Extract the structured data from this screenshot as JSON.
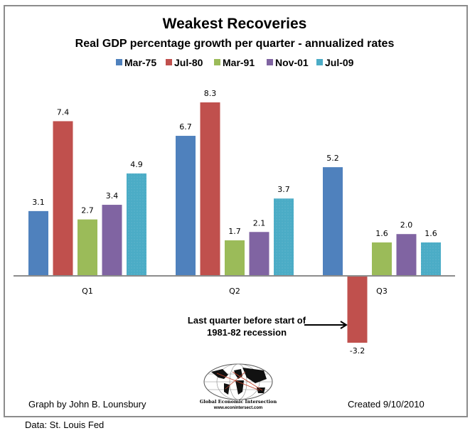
{
  "chart_data": {
    "type": "bar",
    "title": "Weakest Recoveries",
    "subtitle": "Real GDP percentage growth per quarter - annualized rates",
    "xlabel": "",
    "ylabel": "",
    "ylim": [
      -3.2,
      8.3
    ],
    "grid": false,
    "legend_position": "top",
    "categories": [
      "Q1",
      "Q2",
      "Q3"
    ],
    "series": [
      {
        "name": "Mar-75",
        "color": "#4F81BD",
        "values": [
          3.1,
          6.7,
          5.2
        ],
        "labels": [
          "3.1",
          "6.7",
          "5.2"
        ]
      },
      {
        "name": "Jul-80",
        "color": "#C0504D",
        "values": [
          7.4,
          8.3,
          -3.2
        ],
        "labels": [
          "7.4",
          "8.3",
          "-3.2"
        ]
      },
      {
        "name": "Mar-91",
        "color": "#9BBB59",
        "values": [
          2.7,
          1.7,
          1.6
        ],
        "labels": [
          "2.7",
          "1.7",
          "1.6"
        ]
      },
      {
        "name": "Nov-01",
        "color": "#8064A2",
        "values": [
          3.4,
          2.1,
          2.0
        ],
        "labels": [
          "3.4",
          "2.1",
          "2.0"
        ]
      },
      {
        "name": "Jul-09",
        "color": "#4BACC6",
        "values": [
          4.9,
          3.7,
          1.6
        ],
        "labels": [
          "4.9",
          "3.7",
          "1.6"
        ]
      }
    ],
    "annotations": [
      {
        "text_lines": [
          "Last quarter before start of",
          "1981-82 recession"
        ],
        "points_to": {
          "series": "Jul-80",
          "category": "Q3"
        }
      }
    ]
  },
  "footer": {
    "credit": "Graph by John B. Lounsbury",
    "created": "Created 9/10/2010",
    "source": "Data: St. Louis Fed",
    "logo": {
      "name": "Global Economic Intersection",
      "url": "www.econintersect.com"
    }
  }
}
